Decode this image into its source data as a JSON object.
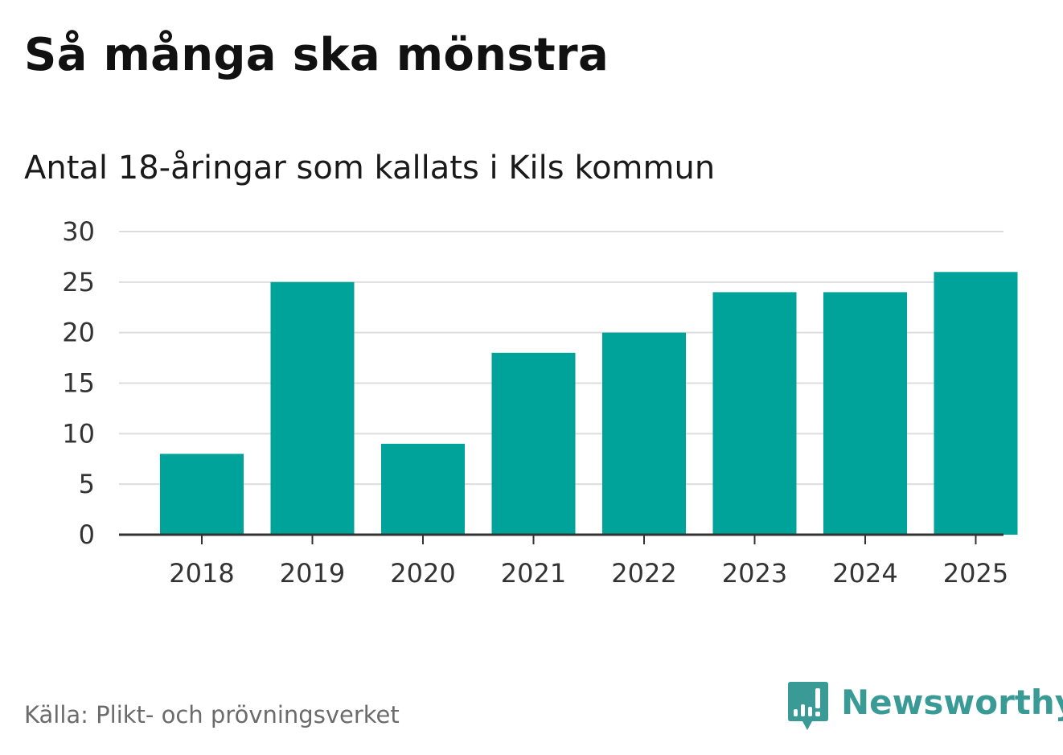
{
  "header": {
    "title": "Så många ska mönstra",
    "subtitle": "Antal 18-åringar som kallats i Kils kommun"
  },
  "footer": {
    "source": "Källa: Plikt- och prövningsverket",
    "brand": "Newsworthy",
    "brand_icon": "bar-chart-speech-bubble-icon"
  },
  "colors": {
    "bar": "#00a39a",
    "grid": "#dddddd",
    "axis": "#333333",
    "brand": "#3a9b96"
  },
  "chart_data": {
    "type": "bar",
    "title": "Så många ska mönstra",
    "subtitle": "Antal 18-åringar som kallats i Kils kommun",
    "categories": [
      "2018",
      "2019",
      "2020",
      "2021",
      "2022",
      "2023",
      "2024",
      "2025"
    ],
    "values": [
      8,
      25,
      9,
      18,
      20,
      24,
      24,
      26
    ],
    "xlabel": "",
    "ylabel": "",
    "ylim": [
      0,
      30
    ],
    "yticks": [
      0,
      5,
      10,
      15,
      20,
      25,
      30
    ],
    "grid": true,
    "legend": "none"
  }
}
